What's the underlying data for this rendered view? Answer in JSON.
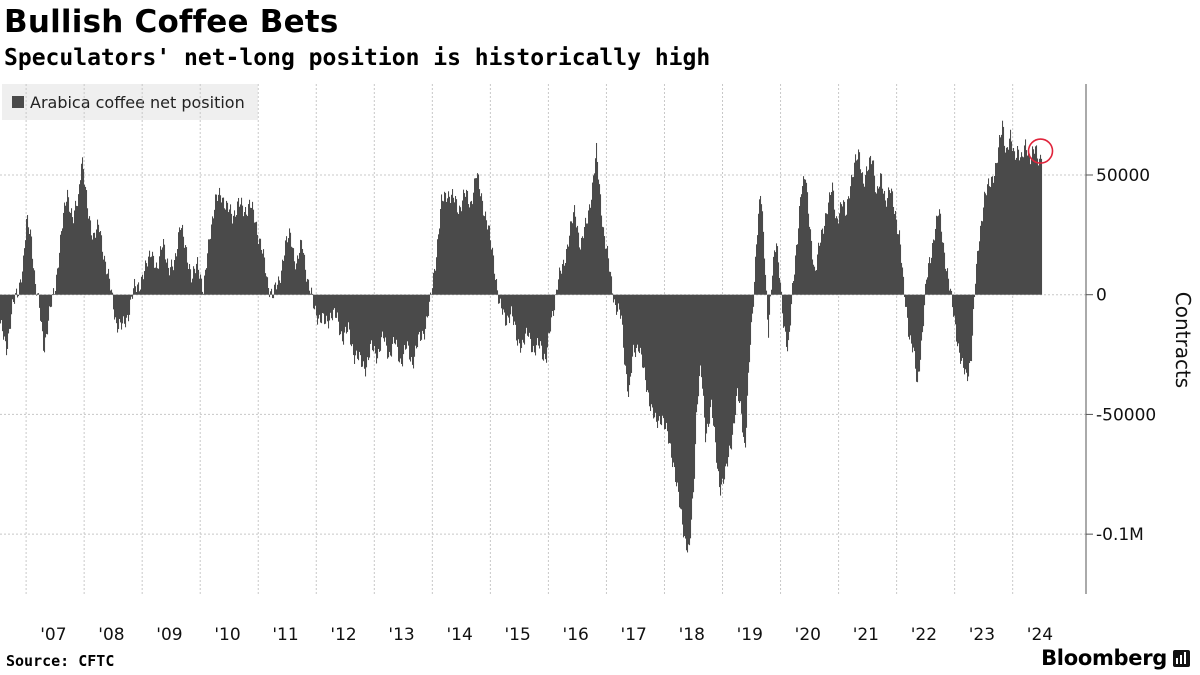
{
  "title": "Bullish Coffee Bets",
  "subtitle": "Speculators' net-long position is historically high",
  "legend_label": "Arabica coffee net position",
  "source": "Source: CFTC",
  "brand": "Bloomberg",
  "colors": {
    "bar": "#4a4a4a",
    "grid": "#c8c8c8",
    "highlight": "#e0243b",
    "legend_bg": "#efefef"
  },
  "icons": {
    "brand": "bloomberg-terminal-icon",
    "highlight": "highlight-circle-icon"
  },
  "chart_data": {
    "type": "area",
    "series_name": "Arabica coffee net position",
    "ylabel": "Contracts",
    "ylim": [
      -125000,
      88000
    ],
    "xlim": [
      2006.55,
      2024.85
    ],
    "yticks": [
      50000,
      0,
      -50000,
      -100000
    ],
    "ytick_labels": [
      "50000",
      "0",
      "-50000",
      "-0.1M"
    ],
    "xtick_years": [
      2007,
      2008,
      2009,
      2010,
      2011,
      2012,
      2013,
      2014,
      2015,
      2016,
      2017,
      2018,
      2019,
      2020,
      2021,
      2022,
      2023,
      2024
    ],
    "xtick_labels": [
      "'07",
      "'08",
      "'09",
      "'10",
      "'11",
      "'12",
      "'13",
      "'14",
      "'15",
      "'16",
      "'17",
      "'18",
      "'19",
      "'20",
      "'21",
      "'22",
      "'23",
      "'24"
    ],
    "points": [
      [
        2006.55,
        -12000
      ],
      [
        2006.65,
        -24000
      ],
      [
        2006.75,
        -5000
      ],
      [
        2006.85,
        0
      ],
      [
        2006.95,
        15000
      ],
      [
        2007.0,
        30000
      ],
      [
        2007.08,
        25000
      ],
      [
        2007.15,
        5000
      ],
      [
        2007.22,
        -6000
      ],
      [
        2007.3,
        -22000
      ],
      [
        2007.4,
        -8000
      ],
      [
        2007.5,
        5000
      ],
      [
        2007.6,
        25000
      ],
      [
        2007.7,
        44000
      ],
      [
        2007.8,
        30000
      ],
      [
        2007.9,
        42000
      ],
      [
        2007.95,
        59000
      ],
      [
        2008.05,
        35000
      ],
      [
        2008.15,
        25000
      ],
      [
        2008.25,
        28000
      ],
      [
        2008.35,
        15000
      ],
      [
        2008.45,
        2000
      ],
      [
        2008.55,
        -12000
      ],
      [
        2008.65,
        -14000
      ],
      [
        2008.75,
        -8000
      ],
      [
        2008.85,
        2000
      ],
      [
        2008.95,
        5000
      ],
      [
        2009.05,
        10000
      ],
      [
        2009.15,
        20000
      ],
      [
        2009.25,
        8000
      ],
      [
        2009.35,
        25000
      ],
      [
        2009.45,
        8000
      ],
      [
        2009.55,
        15000
      ],
      [
        2009.65,
        28000
      ],
      [
        2009.75,
        20000
      ],
      [
        2009.85,
        5000
      ],
      [
        2009.95,
        15000
      ],
      [
        2010.05,
        0
      ],
      [
        2010.15,
        25000
      ],
      [
        2010.25,
        38000
      ],
      [
        2010.35,
        43000
      ],
      [
        2010.45,
        36000
      ],
      [
        2010.55,
        33000
      ],
      [
        2010.65,
        38000
      ],
      [
        2010.75,
        35000
      ],
      [
        2010.85,
        38000
      ],
      [
        2010.95,
        30000
      ],
      [
        2011.05,
        20000
      ],
      [
        2011.15,
        5000
      ],
      [
        2011.25,
        0
      ],
      [
        2011.35,
        5000
      ],
      [
        2011.45,
        20000
      ],
      [
        2011.55,
        25000
      ],
      [
        2011.65,
        12000
      ],
      [
        2011.75,
        22000
      ],
      [
        2011.85,
        5000
      ],
      [
        2011.95,
        -5000
      ],
      [
        2012.05,
        -10000
      ],
      [
        2012.15,
        -12000
      ],
      [
        2012.25,
        -8000
      ],
      [
        2012.35,
        -10000
      ],
      [
        2012.45,
        -18000
      ],
      [
        2012.55,
        -15000
      ],
      [
        2012.65,
        -25000
      ],
      [
        2012.75,
        -28000
      ],
      [
        2012.85,
        -30000
      ],
      [
        2012.95,
        -22000
      ],
      [
        2013.05,
        -25000
      ],
      [
        2013.15,
        -18000
      ],
      [
        2013.25,
        -25000
      ],
      [
        2013.35,
        -20000
      ],
      [
        2013.45,
        -28000
      ],
      [
        2013.55,
        -22000
      ],
      [
        2013.65,
        -28000
      ],
      [
        2013.75,
        -20000
      ],
      [
        2013.85,
        -15000
      ],
      [
        2013.95,
        -5000
      ],
      [
        2014.05,
        15000
      ],
      [
        2014.15,
        38000
      ],
      [
        2014.25,
        43000
      ],
      [
        2014.35,
        40000
      ],
      [
        2014.45,
        36000
      ],
      [
        2014.55,
        42000
      ],
      [
        2014.65,
        38000
      ],
      [
        2014.75,
        50000
      ],
      [
        2014.85,
        40000
      ],
      [
        2014.95,
        28000
      ],
      [
        2015.05,
        15000
      ],
      [
        2015.15,
        -5000
      ],
      [
        2015.25,
        -10000
      ],
      [
        2015.35,
        -8000
      ],
      [
        2015.45,
        -18000
      ],
      [
        2015.55,
        -22000
      ],
      [
        2015.65,
        -15000
      ],
      [
        2015.75,
        -25000
      ],
      [
        2015.85,
        -20000
      ],
      [
        2015.95,
        -28000
      ],
      [
        2016.05,
        -10000
      ],
      [
        2016.15,
        5000
      ],
      [
        2016.25,
        12000
      ],
      [
        2016.35,
        25000
      ],
      [
        2016.45,
        35000
      ],
      [
        2016.55,
        20000
      ],
      [
        2016.65,
        30000
      ],
      [
        2016.75,
        45000
      ],
      [
        2016.82,
        59000
      ],
      [
        2016.9,
        38000
      ],
      [
        2016.95,
        25000
      ],
      [
        2017.05,
        10000
      ],
      [
        2017.15,
        -5000
      ],
      [
        2017.25,
        -10000
      ],
      [
        2017.3,
        -25000
      ],
      [
        2017.38,
        -43000
      ],
      [
        2017.45,
        -25000
      ],
      [
        2017.55,
        -20000
      ],
      [
        2017.65,
        -35000
      ],
      [
        2017.75,
        -45000
      ],
      [
        2017.85,
        -55000
      ],
      [
        2017.95,
        -50000
      ],
      [
        2018.05,
        -60000
      ],
      [
        2018.15,
        -70000
      ],
      [
        2018.25,
        -88000
      ],
      [
        2018.35,
        -102000
      ],
      [
        2018.42,
        -108000
      ],
      [
        2018.5,
        -80000
      ],
      [
        2018.55,
        -45000
      ],
      [
        2018.62,
        -30000
      ],
      [
        2018.7,
        -60000
      ],
      [
        2018.8,
        -45000
      ],
      [
        2018.9,
        -72000
      ],
      [
        2018.95,
        -80000
      ],
      [
        2019.05,
        -75000
      ],
      [
        2019.15,
        -60000
      ],
      [
        2019.25,
        -42000
      ],
      [
        2019.32,
        -50000
      ],
      [
        2019.38,
        -65000
      ],
      [
        2019.45,
        -30000
      ],
      [
        2019.52,
        -5000
      ],
      [
        2019.58,
        25000
      ],
      [
        2019.65,
        43000
      ],
      [
        2019.72,
        15000
      ],
      [
        2019.78,
        -15000
      ],
      [
        2019.85,
        8000
      ],
      [
        2019.92,
        22000
      ],
      [
        2019.98,
        10000
      ],
      [
        2020.05,
        -15000
      ],
      [
        2020.12,
        -25000
      ],
      [
        2020.2,
        5000
      ],
      [
        2020.28,
        20000
      ],
      [
        2020.35,
        45000
      ],
      [
        2020.42,
        52000
      ],
      [
        2020.5,
        25000
      ],
      [
        2020.58,
        10000
      ],
      [
        2020.65,
        20000
      ],
      [
        2020.72,
        25000
      ],
      [
        2020.8,
        38000
      ],
      [
        2020.88,
        45000
      ],
      [
        2020.95,
        30000
      ],
      [
        2021.05,
        40000
      ],
      [
        2021.12,
        32000
      ],
      [
        2021.2,
        48000
      ],
      [
        2021.28,
        55000
      ],
      [
        2021.35,
        58000
      ],
      [
        2021.42,
        48000
      ],
      [
        2021.5,
        52000
      ],
      [
        2021.58,
        58000
      ],
      [
        2021.65,
        42000
      ],
      [
        2021.72,
        48000
      ],
      [
        2021.8,
        40000
      ],
      [
        2021.88,
        45000
      ],
      [
        2021.95,
        35000
      ],
      [
        2022.05,
        25000
      ],
      [
        2022.12,
        0
      ],
      [
        2022.2,
        -15000
      ],
      [
        2022.28,
        -22000
      ],
      [
        2022.35,
        -40000
      ],
      [
        2022.42,
        -20000
      ],
      [
        2022.5,
        5000
      ],
      [
        2022.58,
        15000
      ],
      [
        2022.65,
        28000
      ],
      [
        2022.72,
        35000
      ],
      [
        2022.8,
        20000
      ],
      [
        2022.88,
        8000
      ],
      [
        2022.95,
        -5000
      ],
      [
        2023.05,
        -20000
      ],
      [
        2023.12,
        -30000
      ],
      [
        2023.2,
        -35000
      ],
      [
        2023.28,
        -25000
      ],
      [
        2023.35,
        5000
      ],
      [
        2023.42,
        25000
      ],
      [
        2023.5,
        40000
      ],
      [
        2023.58,
        45000
      ],
      [
        2023.65,
        50000
      ],
      [
        2023.72,
        55000
      ],
      [
        2023.78,
        65000
      ],
      [
        2023.82,
        72000
      ],
      [
        2023.88,
        60000
      ],
      [
        2023.95,
        65000
      ],
      [
        2024.02,
        58000
      ],
      [
        2024.08,
        62000
      ],
      [
        2024.15,
        55000
      ],
      [
        2024.22,
        63000
      ],
      [
        2024.3,
        58000
      ],
      [
        2024.38,
        60000
      ],
      [
        2024.45,
        56000
      ],
      [
        2024.5,
        62000
      ]
    ],
    "highlight": {
      "x": 2024.48,
      "y": 60000,
      "label": ""
    }
  }
}
